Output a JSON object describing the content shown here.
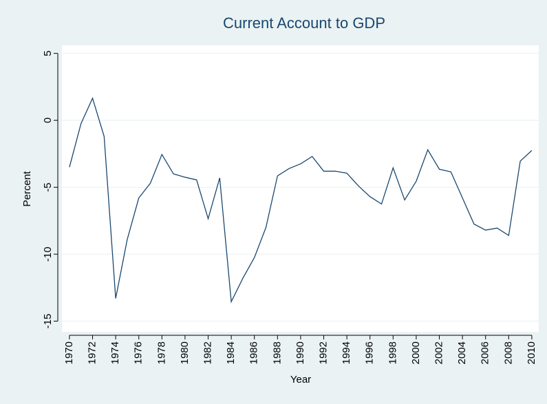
{
  "chart_data": {
    "type": "line",
    "title": "Current Account to GDP",
    "x_label": "Year",
    "y_label": "Percent",
    "x": [
      1970,
      1971,
      1972,
      1973,
      1974,
      1975,
      1976,
      1977,
      1978,
      1979,
      1980,
      1981,
      1982,
      1983,
      1984,
      1985,
      1986,
      1987,
      1988,
      1989,
      1990,
      1991,
      1992,
      1993,
      1994,
      1995,
      1996,
      1997,
      1998,
      1999,
      2000,
      2001,
      2002,
      2003,
      2004,
      2005,
      2006,
      2007,
      2008,
      2009,
      2010
    ],
    "series": [
      {
        "name": "Current Account to GDP",
        "color": "#1a476f",
        "values": [
          -3.5,
          -0.25,
          1.65,
          -1.2,
          -13.3,
          -8.9,
          -5.8,
          -4.7,
          -2.55,
          -4.0,
          -4.25,
          -4.45,
          -7.35,
          -4.3,
          -13.55,
          -11.8,
          -10.25,
          -8.0,
          -4.15,
          -3.6,
          -3.25,
          -2.7,
          -3.8,
          -3.8,
          -3.95,
          -4.9,
          -5.7,
          -6.25,
          -3.55,
          -5.95,
          -4.55,
          -2.2,
          -3.65,
          -3.85,
          -5.8,
          -7.75,
          -8.2,
          -8.05,
          -8.6,
          -3.05,
          -2.25
        ]
      }
    ],
    "xlim": [
      1969.35,
      2010.6
    ],
    "xticks": [
      1970,
      1972,
      1974,
      1976,
      1978,
      1980,
      1982,
      1984,
      1986,
      1988,
      1990,
      1992,
      1994,
      1996,
      1998,
      2000,
      2002,
      2004,
      2006,
      2008,
      2010
    ],
    "ylim": [
      -15.8,
      5.6
    ],
    "yticks": [
      -15,
      -10,
      -5,
      0,
      5
    ],
    "grid": true
  }
}
